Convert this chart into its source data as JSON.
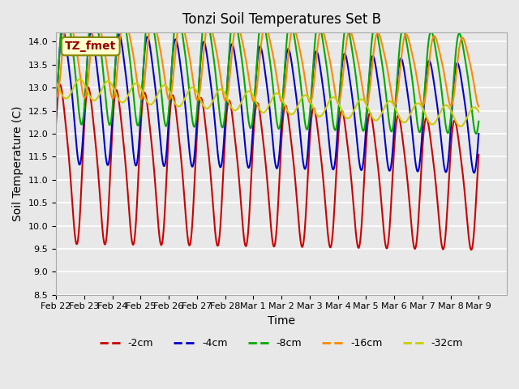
{
  "title": "Tonzi Soil Temperatures Set B",
  "xlabel": "Time",
  "ylabel": "Soil Temperature (C)",
  "ylim": [
    8.5,
    14.2
  ],
  "xlim": [
    0,
    16
  ],
  "legend_labels": [
    "-2cm",
    "-4cm",
    "-8cm",
    "-16cm",
    "-32cm"
  ],
  "legend_colors": [
    "#cc0000",
    "#0000cc",
    "#00aa00",
    "#ff8800",
    "#cccc00"
  ],
  "xtick_positions": [
    0,
    1,
    2,
    3,
    4,
    5,
    6,
    7,
    8,
    9,
    10,
    11,
    12,
    13,
    14,
    15
  ],
  "xtick_labels": [
    "Feb 22",
    "Feb 23",
    "Feb 24",
    "Feb 25",
    "Feb 26",
    "Feb 27",
    "Feb 28",
    "Mar 1",
    "Mar 2",
    "Mar 3",
    "Mar 4",
    "Mar 5",
    "Mar 6",
    "Mar 7",
    "Mar 8",
    "Mar 9"
  ],
  "ytick_values": [
    8.5,
    9.0,
    9.5,
    10.0,
    10.5,
    11.0,
    11.5,
    12.0,
    12.5,
    13.0,
    13.5,
    14.0
  ],
  "annotation_text": "TZ_fmet",
  "annotation_color": "#990000",
  "annotation_bg": "#ffffcc",
  "annotation_border": "#888800",
  "bg_color": "#e8e8e8",
  "grid_color": "#ffffff",
  "title_fontsize": 12,
  "axis_label_fontsize": 10,
  "tick_fontsize": 8,
  "legend_fontsize": 9
}
